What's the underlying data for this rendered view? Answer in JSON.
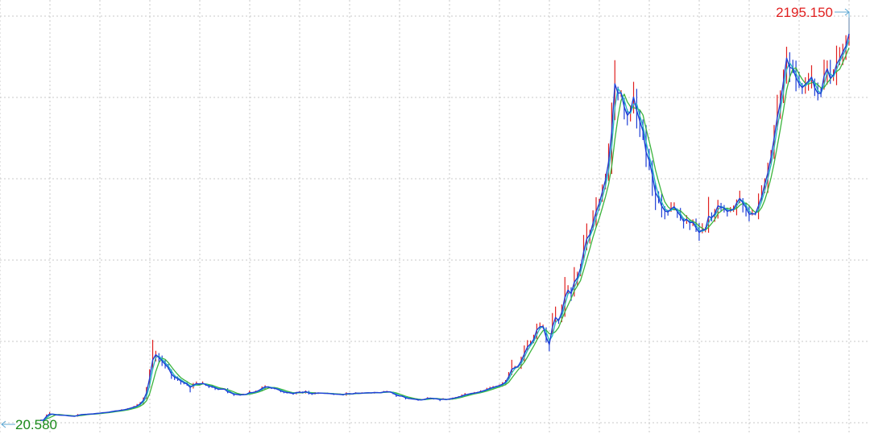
{
  "chart_data": {
    "type": "line",
    "title": "",
    "xlabel": "",
    "ylabel": "",
    "grid": true,
    "legend": "none",
    "ylim": [
      20.58,
      2195.15
    ],
    "max_label": "2195.150",
    "min_label": "20.580",
    "colors": {
      "max_label": "#e02020",
      "min_label": "#1a8a1a",
      "max_arrow": "#5fa8d3",
      "min_arrow": "#5fa8d3",
      "price_line": "#1f3fd6",
      "ma_fast": "#20b8c0",
      "ma_slow": "#3cb43c",
      "up_candle": "#e02020",
      "grid": "#c8c8c8"
    },
    "series": [
      {
        "values": [
          20.58,
          21.5,
          43.2,
          55.8,
          55.1,
          51.2,
          50.0,
          49.1,
          48.7,
          46.0,
          44.5,
          43.3,
          48.5,
          52.1,
          53.7,
          54.5,
          55.8,
          57.0,
          59.0,
          60.6,
          63.0,
          64.7,
          66.6,
          69.8,
          72.6,
          74.5,
          77.7,
          80.2,
          84.5,
          89.6,
          94.8,
          101.8,
          113.2,
          132.6,
          174.1,
          256.4,
          360.2,
          389.8,
          374.1,
          354.8,
          335.5,
          316.5,
          281.1,
          263.3,
          255.2,
          242.5,
          232.6,
          224.5,
          205.7,
          218.3,
          227.3,
          224.5,
          229.1,
          220.5,
          213.2,
          210.3,
          203.1,
          195.3,
          195.7,
          196.3,
          181.6,
          176.2,
          167.2,
          165.8,
          163.1,
          165.2,
          166.8,
          176.5,
          176.2,
          181.3,
          188.0,
          199.6,
          209.1,
          207.9,
          202.7,
          201.0,
          195.4,
          186.1,
          180.6,
          176.6,
          175.6,
          170.7,
          176.2,
          178.9,
          176.6,
          182.1,
          174.1,
          170.2,
          172.8,
          174.1,
          173.8,
          172.0,
          171.9,
          170.5,
          168.3,
          167.5,
          166.6,
          164.1,
          170.7,
          169.9,
          169.0,
          173.9,
          172.4,
          173.4,
          175.1,
          175.5,
          174.9,
          176.8,
          176.3,
          175.7,
          180.4,
          181.6,
          180.5,
          173.1,
          162.8,
          157.9,
          156.2,
          147.5,
          143.3,
          140.9,
          139.1,
          136.1,
          135.1,
          137.8,
          144.4,
          144.9,
          142.3,
          141.5,
          136.8,
          139.6,
          137.2,
          140.6,
          143.6,
          147.6,
          152.0,
          157.1,
          164.0,
          167.0,
          171.3,
          173.6,
          176.8,
          182.1,
          186.9,
          193.0,
          200.3,
          205.5,
          210.8,
          215.9,
          223.5,
          235.2,
          265.6,
          307.1,
          317.5,
          324.3,
          354.5,
          392.9,
          432.3,
          450.3,
          475.6,
          528.7,
          547.0,
          549.0,
          488.2,
          447.4,
          543.2,
          599.6,
          581.1,
          628.6,
          711.2,
          753.0,
          733.1,
          796.5,
          822.3,
          875.2,
          965.9,
          1041.8,
          1066.2,
          1128.9,
          1193.5,
          1241.1,
          1306.6,
          1371.8,
          1475.0,
          1644.0,
          1913.9,
          1861.7,
          1862.4,
          1784.4,
          1736.4,
          1758.9,
          1839.2,
          1763.8,
          1704.5,
          1647.0,
          1530.0,
          1482.4,
          1401.7,
          1301.8,
          1270.9,
          1226.4,
          1199.4,
          1192.7,
          1209.3,
          1222.7,
          1195.4,
          1171.7,
          1140.6,
          1151.7,
          1132.2,
          1135.1,
          1102.7,
          1077.4,
          1091.1,
          1093.5,
          1167.6,
          1159.9,
          1181.2,
          1227.0,
          1220.3,
          1214.3,
          1196.4,
          1202.4,
          1208.1,
          1243.0,
          1269.1,
          1244.9,
          1216.8,
          1180.4,
          1183.1,
          1181.9,
          1228.1,
          1276.7,
          1347.2,
          1413.7,
          1500.3,
          1606.9,
          1721.7,
          1808.2,
          1927.4,
          2058.5,
          2007.1,
          1999.2,
          1950.1,
          1914.8,
          1891.9,
          1910.1,
          1929.4,
          1951.2,
          1892.1,
          1860.2,
          1859.4,
          1957.1,
          1997.9,
          1944.4,
          1963.1,
          2024.0,
          2053.7,
          2090.8,
          2126.2,
          2195.15
        ]
      }
    ]
  }
}
